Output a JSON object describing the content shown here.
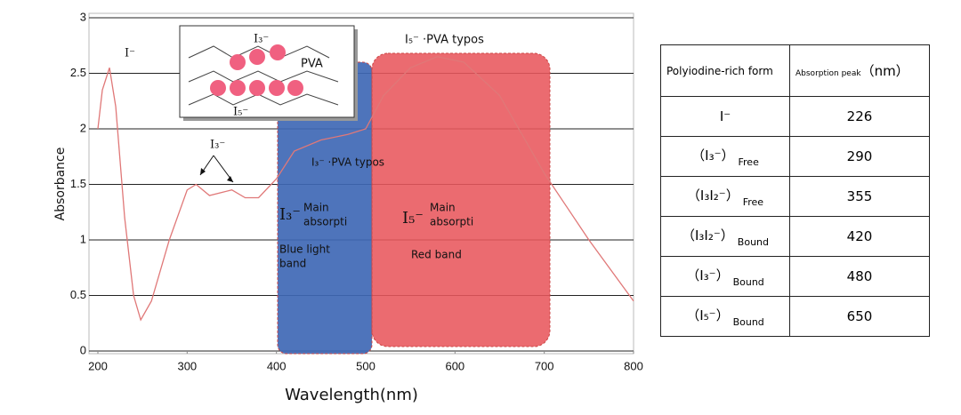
{
  "chart_data": {
    "type": "line",
    "xlabel": "Wavelength(nm)",
    "ylabel": "Absorbance",
    "x": [
      200,
      205,
      213,
      220,
      230,
      240,
      248,
      260,
      280,
      300,
      310,
      325,
      340,
      350,
      365,
      380,
      400,
      420,
      450,
      480,
      500,
      520,
      550,
      580,
      610,
      650,
      700,
      750,
      800
    ],
    "values": [
      2.0,
      2.35,
      2.55,
      2.2,
      1.2,
      0.5,
      0.28,
      0.45,
      1.0,
      1.45,
      1.5,
      1.4,
      1.43,
      1.45,
      1.38,
      1.38,
      1.55,
      1.8,
      1.9,
      1.95,
      2.0,
      2.3,
      2.55,
      2.65,
      2.6,
      2.3,
      1.6,
      1.0,
      0.45
    ],
    "color": "#e07878",
    "xlim": [
      200,
      800
    ],
    "xticks": [
      200,
      300,
      400,
      500,
      600,
      700,
      800
    ],
    "ylim": [
      0,
      3
    ],
    "yticks": [
      0,
      0.5,
      1,
      1.5,
      2,
      2.5,
      3
    ],
    "grid": true,
    "annotations": {
      "i_minus": "I⁻",
      "i5_pva": "I₅⁻ ·PVA typos",
      "i3": "I₃⁻",
      "i3_pva": "I₃⁻ ·PVA typos",
      "inset_i3": "I₃⁻",
      "inset_pva": "PVA",
      "inset_i5": "I₅⁻",
      "blue_ion": "I₃⁻",
      "blue_main": "Main",
      "blue_abs": "absorpti",
      "blue_band1": "Blue light",
      "blue_band2": "band",
      "red_ion": "I₅⁻",
      "red_main": "Main",
      "red_abs": "absorpti",
      "red_band": "Red band"
    }
  },
  "table": {
    "header": {
      "form": "Polyiodine-rich form",
      "peak": "Absorption peak",
      "unit": "（nm）"
    },
    "rows": [
      {
        "form": "I⁻",
        "peak": "226"
      },
      {
        "form": "（I₃⁻）",
        "state": "Free",
        "peak": "290"
      },
      {
        "form": "（I₃I₂⁻）",
        "state": "Free",
        "peak": "355"
      },
      {
        "form": "（I₃I₂⁻）",
        "state": "Bound",
        "peak": "420"
      },
      {
        "form": "（I₃⁻）",
        "state": "Bound",
        "peak": "480"
      },
      {
        "form": "（I₅⁻）",
        "state": "Bound",
        "peak": "650"
      }
    ]
  }
}
